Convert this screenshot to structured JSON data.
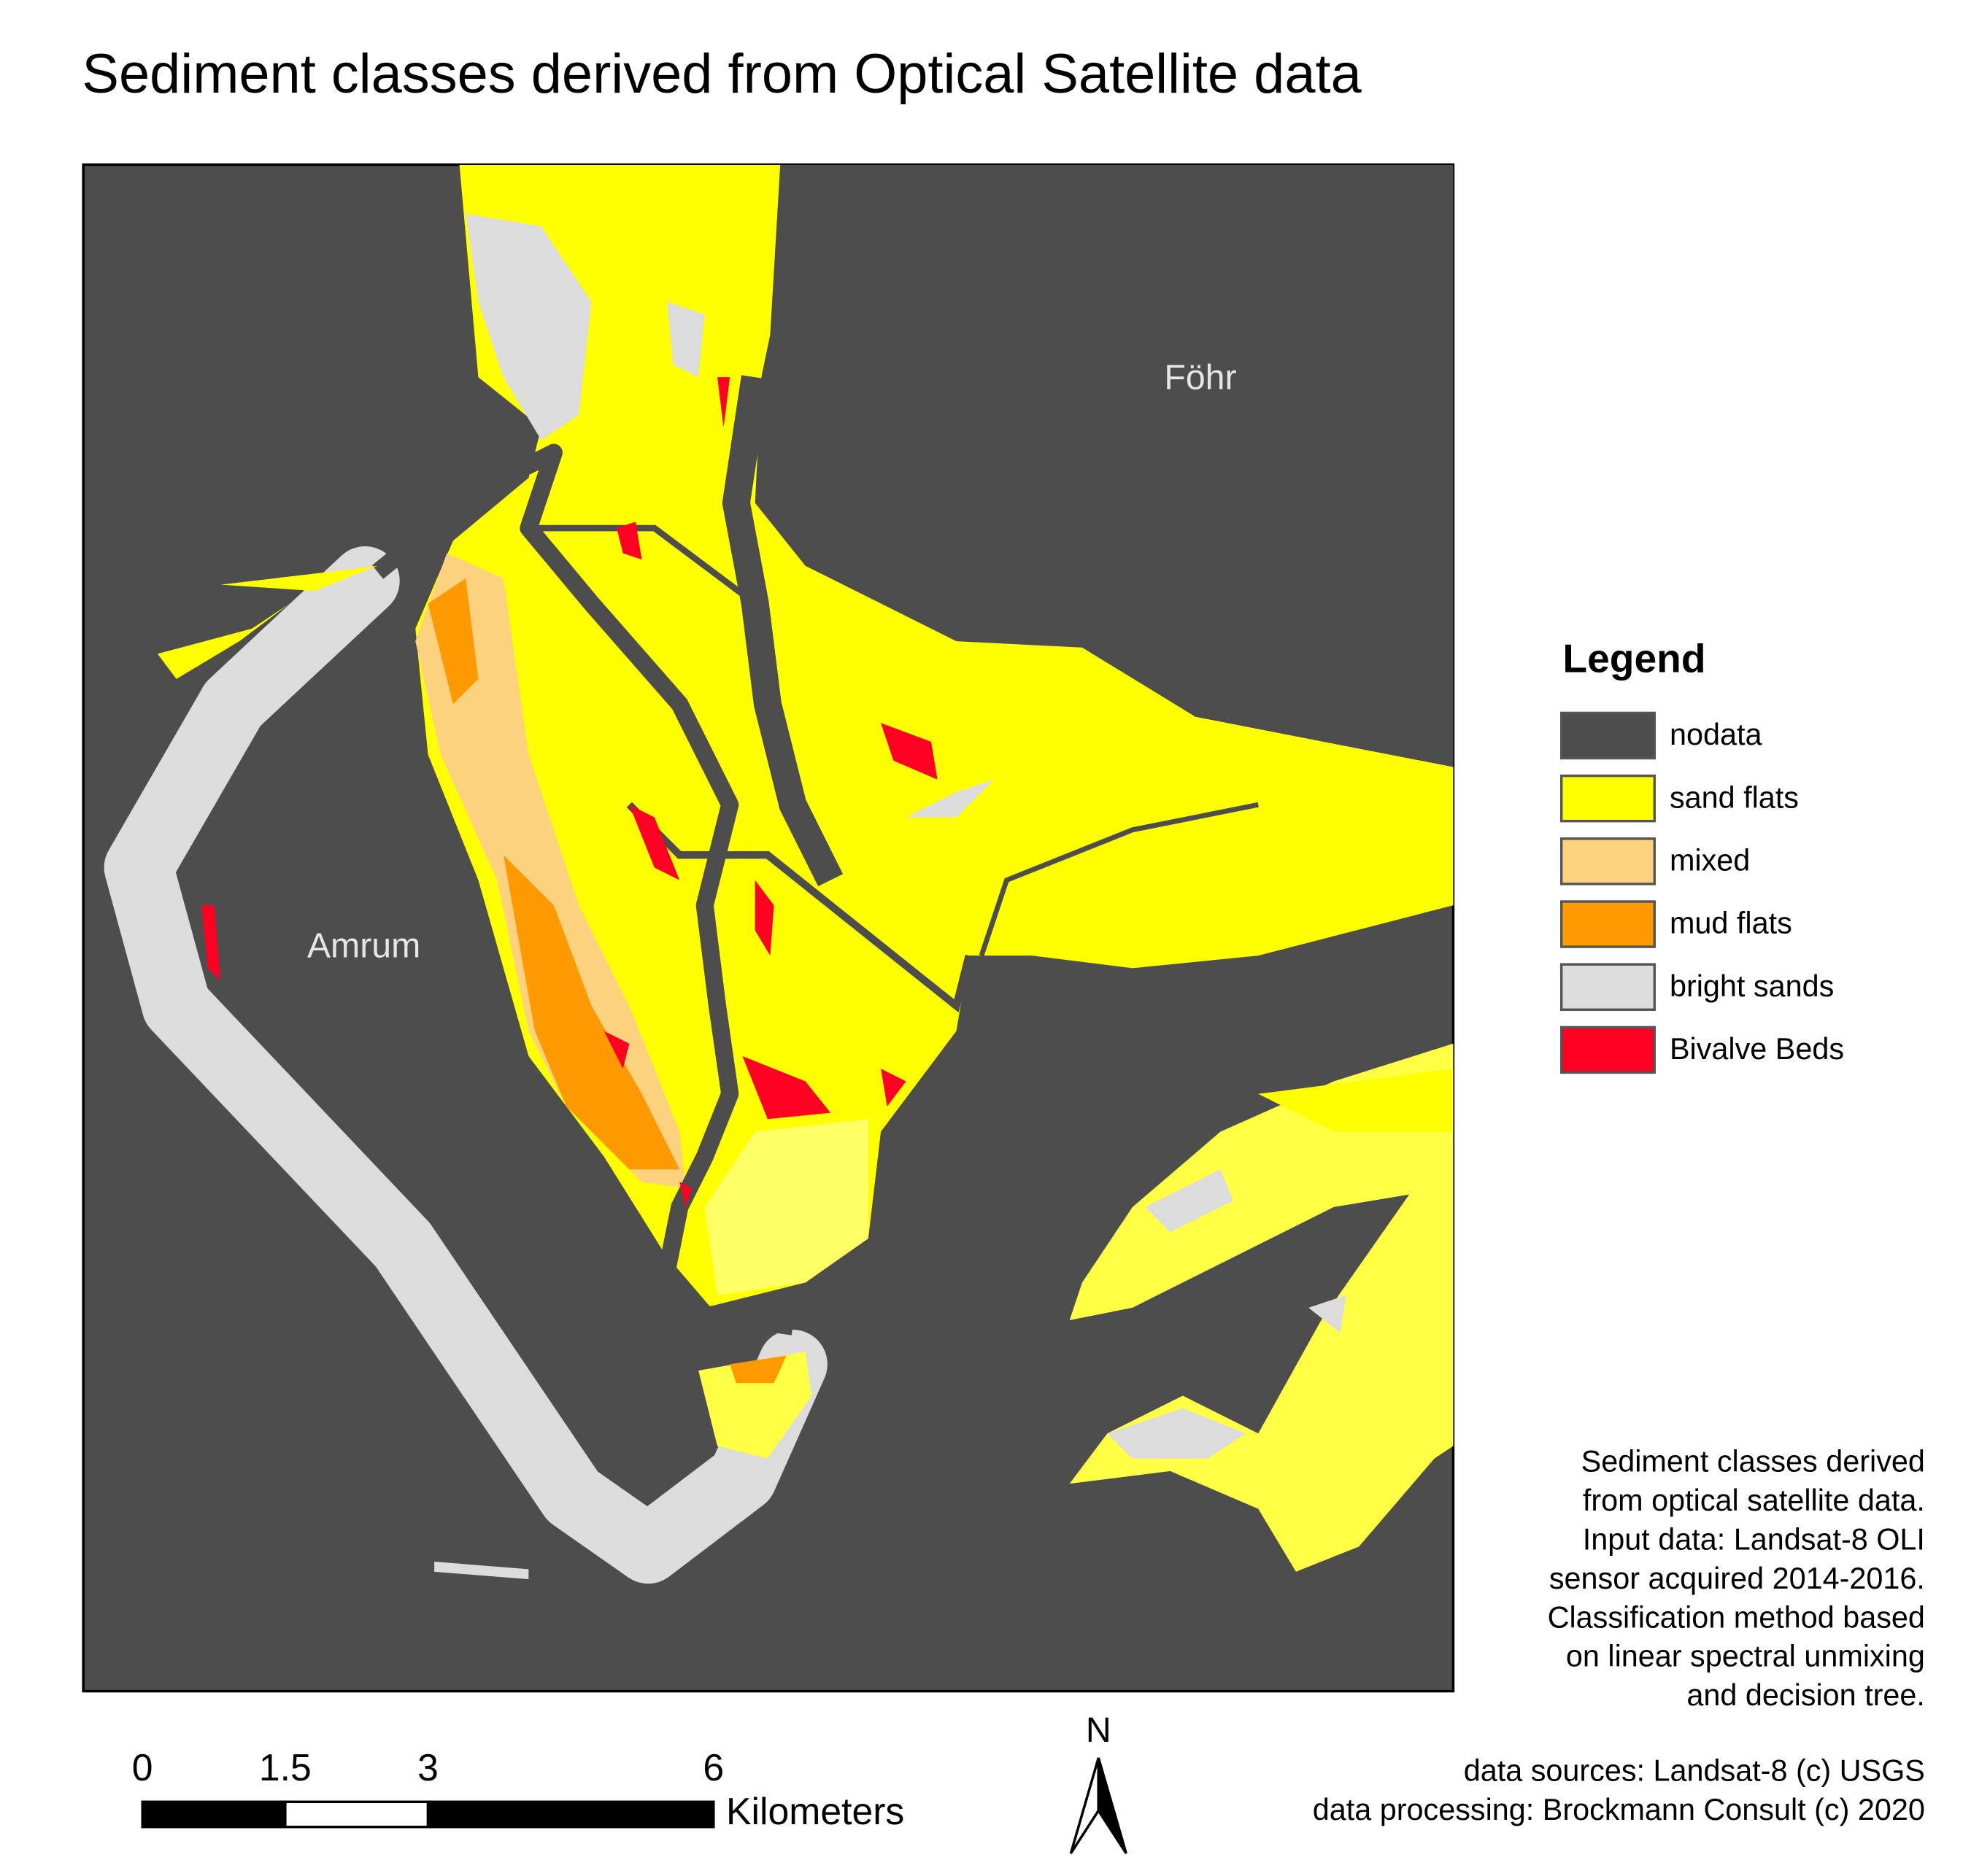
{
  "title": "Sediment classes derived from Optical Satellite data",
  "places": [
    "Föhr",
    "Amrum"
  ],
  "legend": {
    "title": "Legend",
    "items": [
      {
        "label": "nodata",
        "color": "#4d4d4d"
      },
      {
        "label": "sand flats",
        "color": "#ffff00"
      },
      {
        "label": "mixed",
        "color": "#fdd27f"
      },
      {
        "label": "mud flats",
        "color": "#ff9900"
      },
      {
        "label": "bright sands",
        "color": "#dcdcdc"
      },
      {
        "label": "Bivalve Beds",
        "color": "#ff0022"
      }
    ]
  },
  "description": [
    "Sediment classes derived",
    "from optical satellite data.",
    "Input data: Landsat-8 OLI",
    "sensor acquired 2014-2016.",
    "Classification method based",
    "on linear spectral unmixing",
    "and decision tree."
  ],
  "credits": [
    "data sources: Landsat-8 (c) USGS",
    "data processing: Brockmann Consult (c) 2020"
  ],
  "scale_bar": {
    "ticks": [
      0,
      1.5,
      3,
      6
    ],
    "unit": "Kilometers"
  },
  "north_arrow": "N"
}
